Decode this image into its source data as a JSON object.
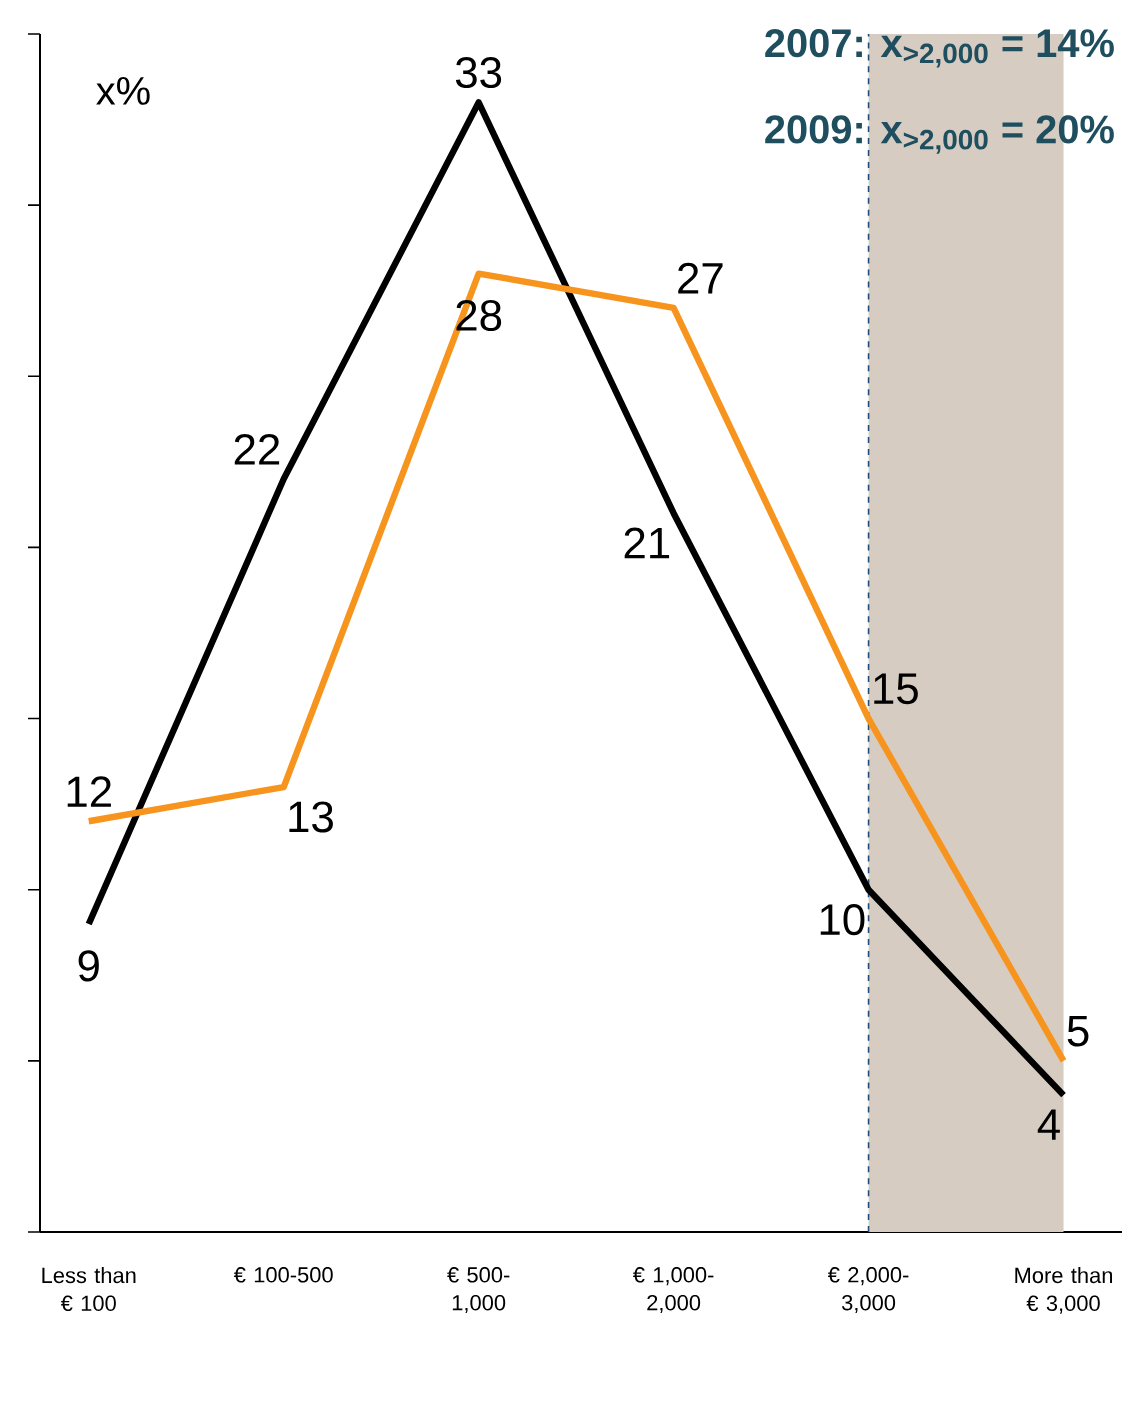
{
  "chart_data": {
    "type": "line",
    "categories": [
      "Less than € 100",
      "€ 100-500",
      "€ 500-1,000",
      "€ 1,000-2,000",
      "€ 2,000-3,000",
      "More than € 3,000"
    ],
    "series": [
      {
        "color": "#000000",
        "values": [
          9,
          22,
          33,
          21,
          10,
          4
        ]
      },
      {
        "color": "#f7941d",
        "values": [
          12,
          13,
          28,
          27,
          15,
          5
        ]
      }
    ],
    "ylabel": "x%",
    "ylim": [
      0,
      35
    ],
    "yticks": [
      {
        "value": 0,
        "label": null
      },
      {
        "value": 5,
        "label": null
      },
      {
        "value": 10,
        "label": null
      },
      {
        "value": 15,
        "label": null
      },
      {
        "value": 20,
        "label": null
      },
      {
        "value": 25,
        "label": null
      },
      {
        "value": 30,
        "label": null
      },
      {
        "value": 35,
        "label": null
      }
    ],
    "tick_labels": "x",
    "data_labels": true,
    "annotations": [
      "2007: x$_{>2,000}$ = 14%",
      "2009: x$_{>2,000}$ = 20%"
    ],
    "bands": [
      {
        "axis": "x",
        "from": "€ 2,000-3,000",
        "to": "More than € 3,000",
        "color": "#d6ccc2"
      }
    ],
    "ref_lines": [
      {
        "axis": "x",
        "value": "€ 2,000-3,000",
        "color": "#1f4e79",
        "line_style": "dashed"
      }
    ]
  }
}
